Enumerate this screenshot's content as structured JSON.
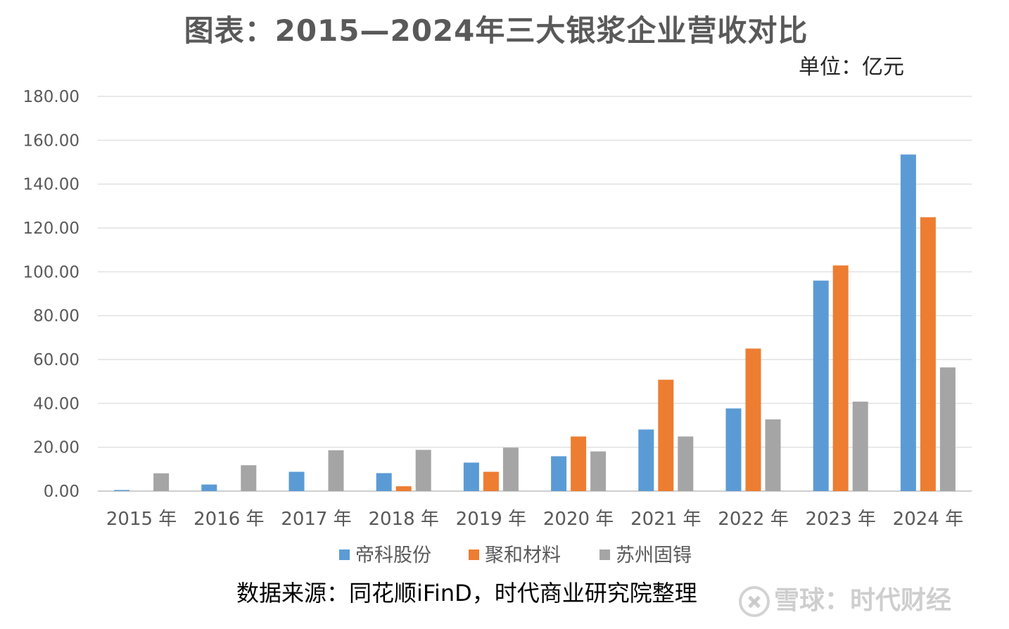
{
  "header": {
    "title": "图表：2015—2024年三大银浆企业营收对比",
    "unit": "单位：亿元"
  },
  "footer": {
    "source": "数据来源：同花顺iFinD，时代商业研究院整理",
    "watermark": "雪球：时代财经"
  },
  "chart_data": {
    "type": "bar",
    "title": "图表：2015—2024年三大银浆企业营收对比",
    "ylabel": "",
    "xlabel": "",
    "ylim": [
      0,
      180
    ],
    "yticks": [
      "0.00",
      "20.00",
      "40.00",
      "60.00",
      "80.00",
      "100.00",
      "120.00",
      "140.00",
      "160.00",
      "180.00"
    ],
    "grid": true,
    "legend": "bottom",
    "categories": [
      "2015 年",
      "2016 年",
      "2017 年",
      "2018 年",
      "2019 年",
      "2020 年",
      "2021 年",
      "2022 年",
      "2023 年",
      "2024 年"
    ],
    "series": [
      {
        "name": "帝科股份",
        "color": "#5B9BD5",
        "values": [
          0.5,
          3.0,
          8.8,
          8.2,
          13.0,
          15.9,
          28.1,
          37.7,
          96.0,
          153.5
        ]
      },
      {
        "name": "聚和材料",
        "color": "#ED7D31",
        "values": [
          null,
          null,
          null,
          2.2,
          8.8,
          24.9,
          50.8,
          65.0,
          102.9,
          124.9
        ]
      },
      {
        "name": "苏州固锝",
        "color": "#A5A5A5",
        "values": [
          8.1,
          11.8,
          18.6,
          18.8,
          19.8,
          18.1,
          24.9,
          32.7,
          40.8,
          56.4
        ]
      }
    ]
  }
}
